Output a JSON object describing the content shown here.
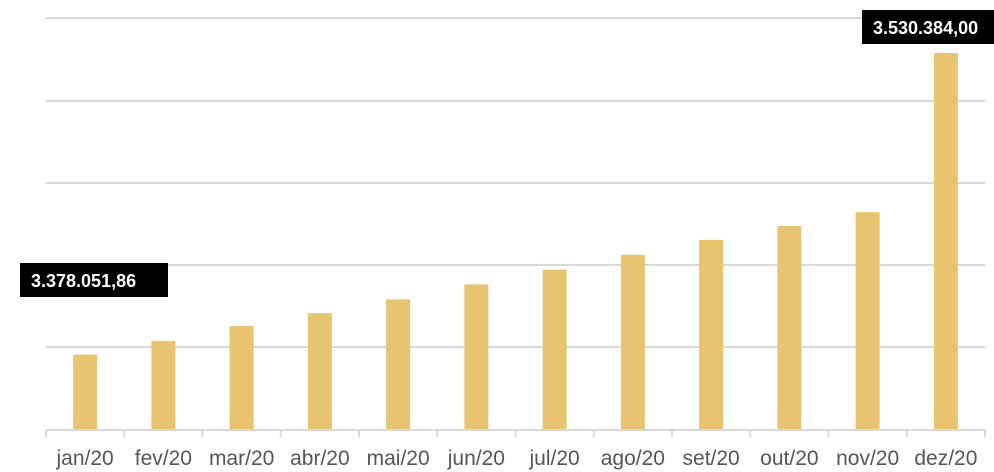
{
  "chart_data": {
    "type": "bar",
    "title": "",
    "xlabel": "",
    "ylabel": "",
    "categories": [
      "jan/20",
      "fev/20",
      "mar/20",
      "abr/20",
      "mai/20",
      "jun/20",
      "jul/20",
      "ago/20",
      "set/20",
      "out/20",
      "nov/20",
      "dez/20"
    ],
    "series": [
      {
        "values": [
          3378051.86,
          3385000,
          3392500,
          3399000,
          3406000,
          3413500,
          3421000,
          3428500,
          3436000,
          3443000,
          3450000,
          3530384.0
        ]
      }
    ],
    "ylim": [
      3340000,
      3530384
    ],
    "grid": true,
    "legend": "none",
    "y_tick_labels_shown": false,
    "data_labels": [
      {
        "category": "jan/20",
        "text": "3.378.051,86"
      },
      {
        "category": "dez/20",
        "text": "3.530.384,00"
      }
    ],
    "colors": {
      "bar": "#e8c471",
      "label_box": "#000000",
      "label_text": "#ffffff",
      "grid": "#d9d9d9",
      "tick_text": "#555555"
    }
  }
}
